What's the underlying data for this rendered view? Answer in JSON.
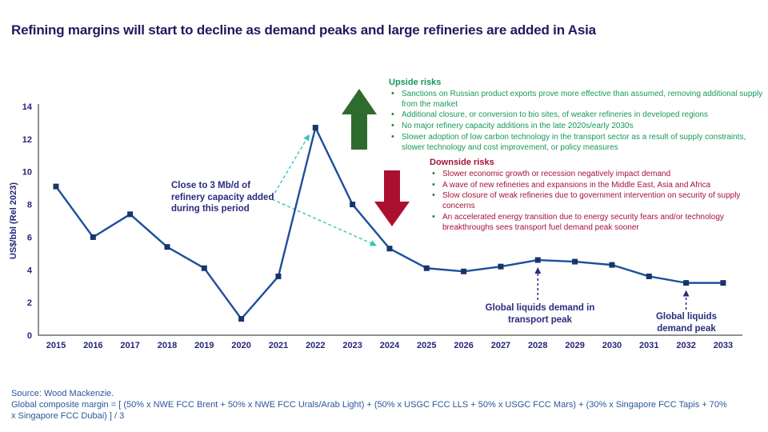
{
  "title": "Refining margins will start to decline as demand peaks and large refineries are added in Asia",
  "chart_data": {
    "type": "line",
    "categories": [
      "2015",
      "2016",
      "2017",
      "2018",
      "2019",
      "2020",
      "2021",
      "2022",
      "2023",
      "2024",
      "2025",
      "2026",
      "2027",
      "2028",
      "2029",
      "2030",
      "2031",
      "2032",
      "2033"
    ],
    "series": [
      {
        "name": "Global composite margin",
        "values": [
          9.1,
          6.0,
          7.4,
          5.4,
          4.1,
          1.0,
          3.6,
          12.7,
          8.0,
          5.3,
          4.1,
          3.9,
          4.2,
          4.6,
          4.5,
          4.3,
          3.6,
          3.2,
          3.2
        ]
      }
    ],
    "title": "",
    "xlabel": "",
    "ylabel": "US$/bbl (Rel 2023)",
    "ylim": [
      0,
      14
    ],
    "yticks": [
      0,
      2,
      4,
      6,
      8,
      10,
      12,
      14
    ],
    "grid": false,
    "legend": "none",
    "marker": "square",
    "annotations": {
      "capacity_note": {
        "lines": [
          "Close to 3 Mb/d of",
          "refinery capacity added",
          "during this period"
        ],
        "target_years": [
          "2022",
          "2024"
        ]
      },
      "transport_peak": {
        "lines": [
          "Global liquids demand in",
          "transport peak"
        ],
        "target_year": "2028"
      },
      "demand_peak": {
        "lines": [
          "Global liquids",
          "demand peak"
        ],
        "target_year": "2032"
      }
    }
  },
  "upside": {
    "heading": "Upside risks",
    "items": [
      "Sanctions on Russian product exports prove more effective than assumed, removing additional supply from the market",
      "Additional closure, or conversion to bio sites, of weaker refineries in developed regions",
      "No major refinery capacity additions in the late 2020s/early 2030s",
      "Slower adoption of low carbon technology in the transport sector as a result of supply constraints, slower technology and cost improvement, or policy measures"
    ]
  },
  "downside": {
    "heading": "Downside risks",
    "items": [
      "Slower economic growth or recession negatively impact demand",
      "A wave of new refineries and expansions in the Middle East, Asia and Africa",
      "Slow closure of weak refineries due to government intervention on security of supply concerns",
      "An accelerated energy transition due to energy security fears and/or technology breakthroughs sees transport fuel demand peak sooner"
    ]
  },
  "source": {
    "line1": "Source: Wood Mackenzie.",
    "formula": "Global composite margin = [ (50% x NWE FCC Brent + 50% x NWE FCC Urals/Arab Light) + (50% x USGC FCC LLS + 50% x USGC FCC Mars) + (30% x Singapore FCC Tapis + 70% x Singapore FCC Dubai) ] / 3"
  },
  "icons": {
    "upside_arrow": "arrow-up-icon",
    "downside_arrow": "arrow-down-icon"
  },
  "colors": {
    "title": "#1F1A5E",
    "chart_line": "#1E4F9C",
    "chart_marker": "#16356B",
    "axis": "#6B6B6B",
    "tick_label": "#262678",
    "annotation": "#2B2B80",
    "teal_arrow": "#3CC3B8",
    "upside_text": "#17995A",
    "upside_arrow": "#2E6B2F",
    "downside_text": "#A6123A",
    "downside_arrow": "#AC1030",
    "bullet": "#2E7D32",
    "source_text": "#2B579A"
  }
}
